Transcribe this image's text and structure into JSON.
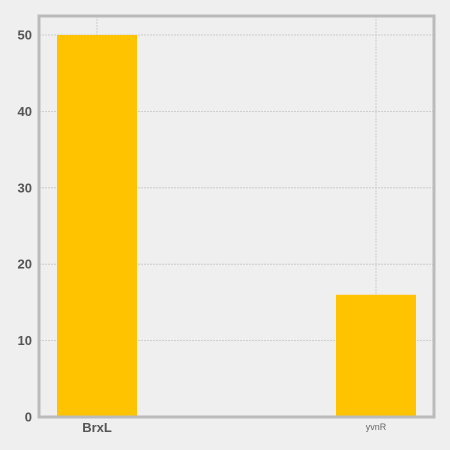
{
  "chart_data": {
    "type": "bar",
    "categories": [
      "BrxL",
      "yvnR"
    ],
    "values": [
      50,
      16
    ],
    "ylim": [
      0,
      50
    ],
    "yticks": [
      "0",
      "10",
      "20",
      "30",
      "40",
      "50"
    ],
    "grid": true,
    "bar_color": "#ffc300",
    "axis_color": "#bbbbbb",
    "grid_color": "#c4c4c4",
    "background": "#efefef"
  }
}
